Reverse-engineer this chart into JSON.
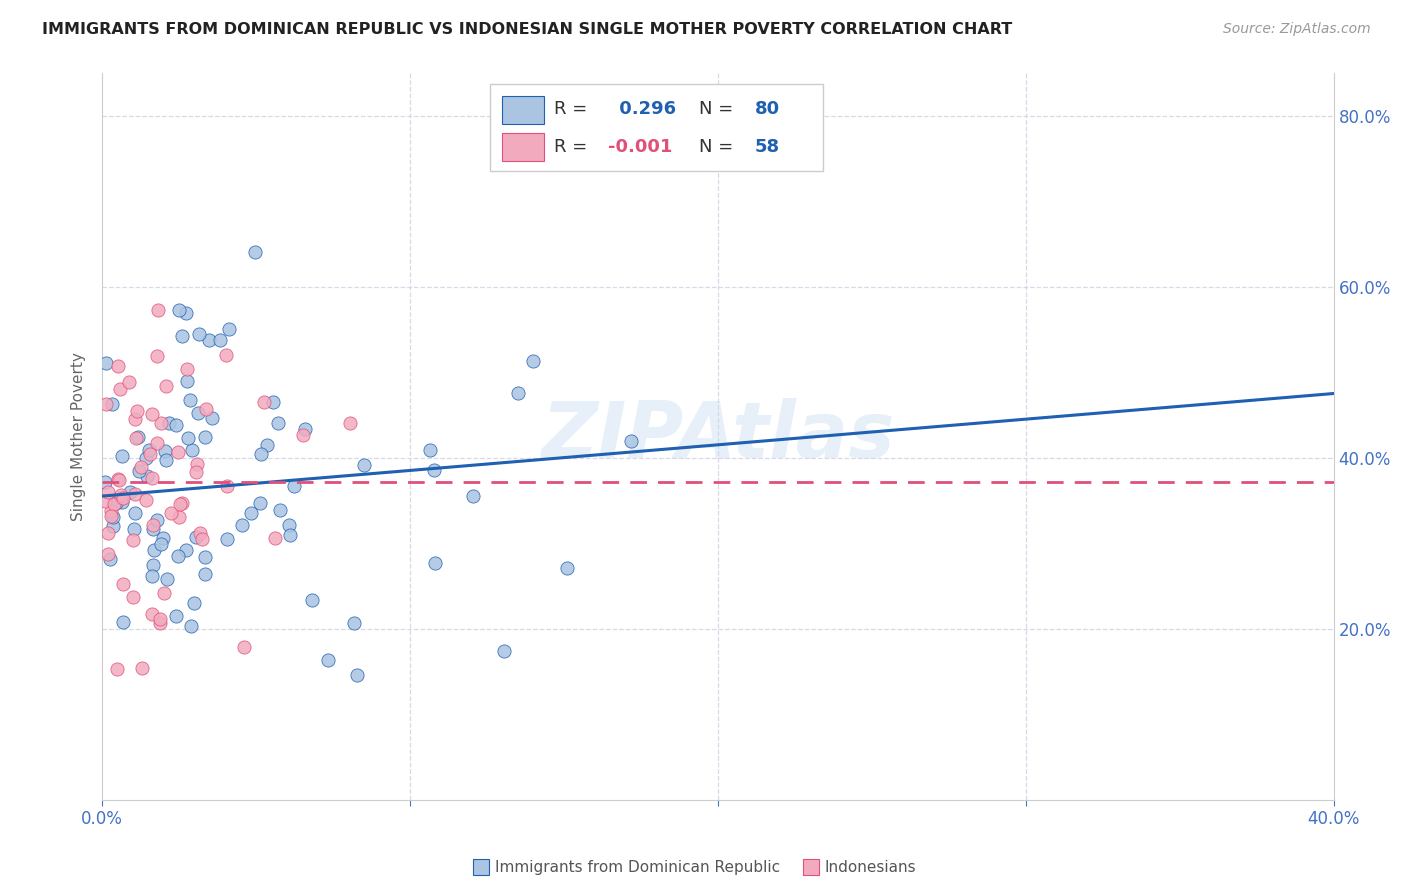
{
  "title": "IMMIGRANTS FROM DOMINICAN REPUBLIC VS INDONESIAN SINGLE MOTHER POVERTY CORRELATION CHART",
  "source": "Source: ZipAtlas.com",
  "ylabel": "Single Mother Poverty",
  "legend_label1": "Immigrants from Dominican Republic",
  "legend_label2": "Indonesians",
  "R1": 0.296,
  "N1": 80,
  "R2": -0.001,
  "N2": 58,
  "xlim": [
    0.0,
    0.4
  ],
  "ylim": [
    0.0,
    0.85
  ],
  "color_blue": "#aac4e2",
  "color_pink": "#f2abbe",
  "line_color_blue": "#2060b0",
  "line_color_pink": "#e0507a",
  "background_color": "#ffffff",
  "grid_color": "#d8d8e8",
  "watermark": "ZIPAtlas",
  "title_color": "#222222",
  "axis_color": "#4472c4",
  "blue_line_y0": 0.355,
  "blue_line_y1": 0.475,
  "pink_line_y": 0.372,
  "seed": 7
}
